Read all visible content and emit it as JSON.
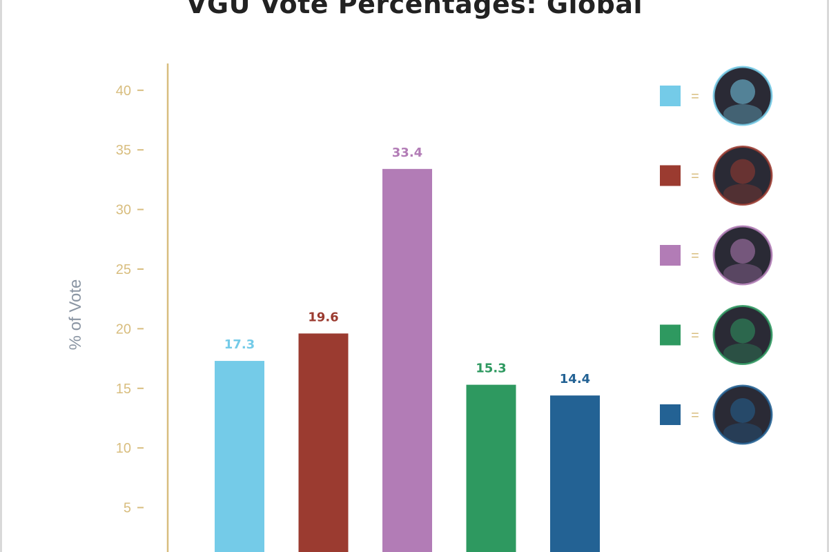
{
  "chart_data": {
    "type": "bar",
    "title": "VGU Vote Percentages: Global",
    "ylabel": "% of Vote",
    "xlabel": "",
    "ylim": [
      0,
      42
    ],
    "yticks": [
      5,
      10,
      15,
      20,
      25,
      30,
      35,
      40
    ],
    "series": [
      {
        "value": 17.3,
        "value_label": "17.3",
        "color": "#74cbe8",
        "legend_icon": "tryndamere-portrait"
      },
      {
        "value": 19.6,
        "value_label": "19.6",
        "color": "#9b3b30",
        "legend_icon": "shyvana-portrait"
      },
      {
        "value": 33.4,
        "value_label": "33.4",
        "color": "#b27cb6",
        "legend_icon": "chogath-portrait"
      },
      {
        "value": 15.3,
        "value_label": "15.3",
        "color": "#2e9960",
        "legend_icon": "kennen-portrait"
      },
      {
        "value": 14.4,
        "value_label": "14.4",
        "color": "#236294",
        "legend_icon": "kassadin-portrait"
      }
    ],
    "legend_placement": "right",
    "legend_separator": "="
  },
  "colors": {
    "axis": "#d8bd7e",
    "title": "#222222"
  }
}
